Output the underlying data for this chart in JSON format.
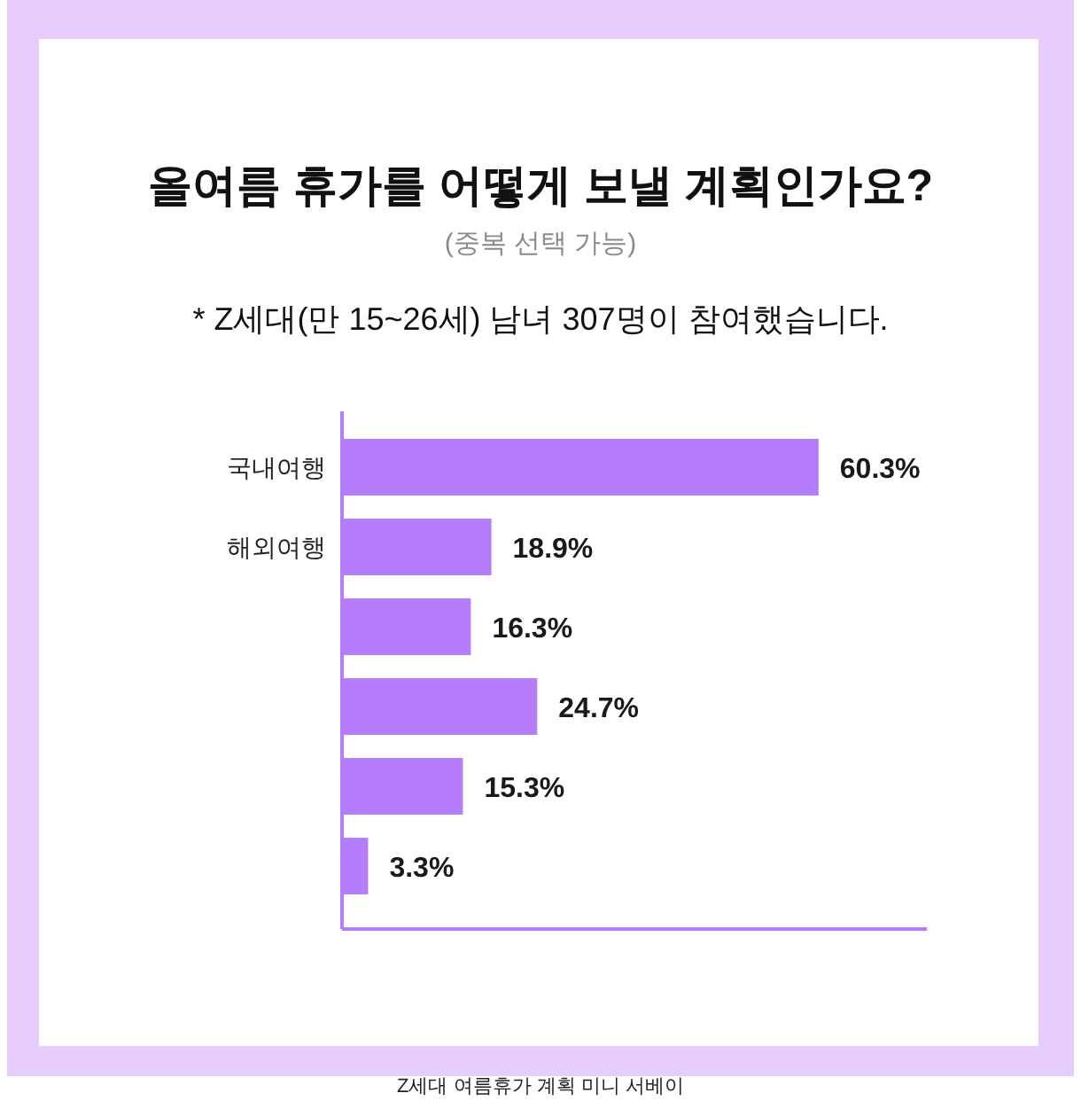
{
  "chart_data": {
    "type": "bar",
    "orientation": "horizontal",
    "title": "올여름 휴가를 어떻게 보낼 계획인가요?",
    "subtitle": "(중복 선택 가능)",
    "annotations": [
      "* Z세대(만 15~26세) 남녀 307명이 참여했습니다.",
      "Z세대 여름휴가 계획 미니 서베이"
    ],
    "categories": [
      "국내여행",
      "해외여행",
      null,
      null,
      null,
      null
    ],
    "values": [
      60.3,
      18.9,
      16.3,
      24.7,
      15.3,
      3.3
    ],
    "value_labels": [
      "60.3%",
      "18.9%",
      "16.3%",
      "24.7%",
      "15.3%",
      "3.3%"
    ],
    "color": "#b57cfb",
    "xlim": [
      0,
      74
    ]
  }
}
